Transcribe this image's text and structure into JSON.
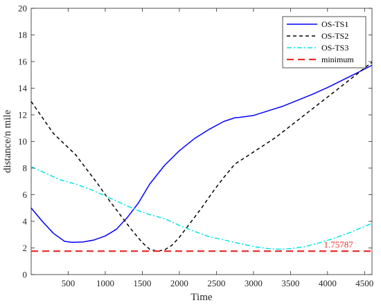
{
  "chart_data": {
    "type": "line",
    "title": "",
    "xlabel": "Time",
    "ylabel": "distance/n mile",
    "xlim": [
      0,
      4600
    ],
    "ylim": [
      0,
      20
    ],
    "xticks": [
      500,
      1000,
      1500,
      2000,
      2500,
      3000,
      3500,
      4000,
      4500
    ],
    "yticks": [
      0,
      2,
      4,
      6,
      8,
      10,
      12,
      14,
      16,
      18,
      20
    ],
    "grid": false,
    "legend_position": "top-right",
    "series": [
      {
        "name": "OS-TS1",
        "color": "#0000ff",
        "style": "solid",
        "x": [
          0,
          150,
          300,
          450,
          550,
          700,
          850,
          1000,
          1150,
          1300,
          1450,
          1600,
          1800,
          2000,
          2200,
          2400,
          2600,
          2750,
          2800,
          3000,
          3200,
          3400,
          3600,
          3800,
          4000,
          4200,
          4400,
          4600
        ],
        "y": [
          5.0,
          4.0,
          3.1,
          2.5,
          2.42,
          2.45,
          2.6,
          2.9,
          3.4,
          4.3,
          5.4,
          6.8,
          8.2,
          9.3,
          10.2,
          10.9,
          11.5,
          11.78,
          11.8,
          11.95,
          12.3,
          12.65,
          13.1,
          13.55,
          14.05,
          14.6,
          15.15,
          15.72
        ]
      },
      {
        "name": "OS-TS2",
        "color": "#000000",
        "style": "dashed",
        "x": [
          0,
          150,
          300,
          450,
          600,
          750,
          900,
          1050,
          1200,
          1350,
          1500,
          1600,
          1700,
          1800,
          1900,
          2000,
          2150,
          2300,
          2450,
          2600,
          2750,
          3000,
          3300,
          3600,
          3900,
          4200,
          4600
        ],
        "y": [
          13.0,
          11.8,
          10.6,
          9.8,
          9.0,
          7.9,
          6.8,
          5.6,
          4.5,
          3.4,
          2.4,
          1.9,
          1.76,
          1.85,
          2.2,
          2.8,
          3.9,
          5.0,
          6.2,
          7.3,
          8.3,
          9.2,
          10.3,
          11.6,
          12.9,
          14.2,
          15.95
        ]
      },
      {
        "name": "OS-TS3",
        "color": "#00e5e5",
        "style": "dashdot",
        "x": [
          0,
          200,
          400,
          600,
          800,
          1000,
          1200,
          1400,
          1600,
          1800,
          2000,
          2200,
          2400,
          2600,
          2800,
          3000,
          3200,
          3350,
          3500,
          3700,
          3900,
          4100,
          4300,
          4600
        ],
        "y": [
          8.1,
          7.6,
          7.1,
          6.8,
          6.4,
          5.9,
          5.4,
          4.9,
          4.5,
          4.2,
          3.7,
          3.25,
          2.85,
          2.6,
          2.35,
          2.1,
          1.95,
          1.9,
          1.95,
          2.1,
          2.4,
          2.75,
          3.15,
          3.85
        ]
      },
      {
        "name": "minimum",
        "color": "#e8302e",
        "style": "longdash",
        "x": [
          0,
          4600
        ],
        "y": [
          1.75787,
          1.75787
        ]
      }
    ],
    "annotation": {
      "text": "1.75787",
      "x": 3950,
      "y": 1.75787,
      "color": "#e8302e"
    }
  }
}
